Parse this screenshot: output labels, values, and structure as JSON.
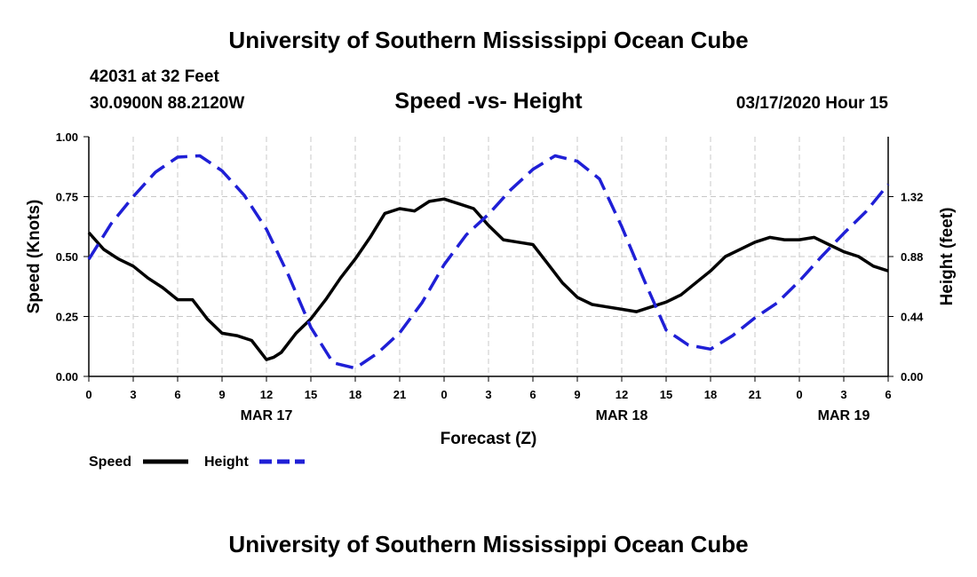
{
  "header": {
    "title": "University of Southern Mississippi Ocean Cube",
    "station": "42031 at 32 Feet",
    "coords": "30.0900N 88.2120W",
    "subtitle": "Speed -vs- Height",
    "datetime": "03/17/2020 Hour 15"
  },
  "footer": {
    "title": "University of Southern Mississippi Ocean Cube"
  },
  "chart_data": {
    "type": "line",
    "title": "Speed -vs- Height",
    "xlabel": "Forecast (Z)",
    "ylabel": "Speed (Knots)",
    "y2label": "Height (feet)",
    "xlim": [
      0,
      54
    ],
    "ylim": [
      0,
      1.0
    ],
    "y2lim": [
      0,
      1.76
    ],
    "grid": true,
    "x_ticks": [
      0,
      3,
      6,
      9,
      12,
      15,
      18,
      21,
      24,
      27,
      30,
      33,
      36,
      39,
      42,
      45,
      48,
      51,
      54
    ],
    "x_tick_labels": [
      "0",
      "3",
      "6",
      "9",
      "12",
      "15",
      "18",
      "21",
      "0",
      "3",
      "6",
      "9",
      "12",
      "15",
      "18",
      "21",
      "0",
      "3",
      "6"
    ],
    "date_labels": [
      {
        "x": 12,
        "label": "MAR 17"
      },
      {
        "x": 36,
        "label": "MAR 18"
      },
      {
        "x": 51,
        "label": "MAR 19"
      }
    ],
    "y_ticks": [
      0.0,
      0.25,
      0.5,
      0.75,
      1.0
    ],
    "y_tick_labels": [
      "0.00",
      "0.25",
      "0.50",
      "0.75",
      "1.00"
    ],
    "y2_ticks": [
      0.0,
      0.44,
      0.88,
      1.32
    ],
    "y2_tick_labels": [
      "0.00",
      "0.44",
      "0.88",
      "1.32"
    ],
    "series": [
      {
        "name": "Speed",
        "axis": "left",
        "color": "#000000",
        "dash": false,
        "x": [
          0,
          1,
          2,
          3,
          4,
          5,
          6,
          7,
          8,
          9,
          10,
          11,
          12,
          12.5,
          13,
          14,
          15,
          16,
          17,
          18,
          19,
          20,
          21,
          22,
          23,
          24,
          25,
          26,
          27,
          28,
          29,
          30,
          31,
          32,
          33,
          34,
          35,
          36,
          37,
          38,
          39,
          40,
          41,
          42,
          43,
          44,
          45,
          46,
          47,
          48,
          49,
          50,
          51,
          52,
          53,
          54
        ],
        "values": [
          0.6,
          0.53,
          0.49,
          0.46,
          0.41,
          0.37,
          0.32,
          0.32,
          0.24,
          0.18,
          0.17,
          0.15,
          0.07,
          0.08,
          0.1,
          0.18,
          0.24,
          0.32,
          0.41,
          0.49,
          0.58,
          0.68,
          0.7,
          0.69,
          0.73,
          0.74,
          0.72,
          0.7,
          0.63,
          0.57,
          0.56,
          0.55,
          0.47,
          0.39,
          0.33,
          0.3,
          0.29,
          0.28,
          0.27,
          0.29,
          0.31,
          0.34,
          0.39,
          0.44,
          0.5,
          0.53,
          0.56,
          0.58,
          0.57,
          0.57,
          0.58,
          0.55,
          0.52,
          0.5,
          0.46,
          0.44
        ]
      },
      {
        "name": "Height",
        "axis": "right",
        "color": "#1f1fd6",
        "dash": true,
        "x": [
          0,
          1.5,
          3,
          4.5,
          6,
          7.5,
          9,
          10.5,
          12,
          13.5,
          15,
          16.5,
          18,
          19.5,
          21,
          22.5,
          24,
          25.5,
          27,
          28.5,
          30,
          31.5,
          33,
          34.5,
          36,
          37.5,
          39,
          40.5,
          42,
          43.5,
          45,
          46.5,
          48,
          49.5,
          51,
          52.5,
          54
        ],
        "values": [
          0.86,
          1.12,
          1.32,
          1.5,
          1.61,
          1.62,
          1.51,
          1.33,
          1.08,
          0.74,
          0.36,
          0.1,
          0.06,
          0.17,
          0.32,
          0.54,
          0.82,
          1.04,
          1.19,
          1.37,
          1.52,
          1.62,
          1.58,
          1.45,
          1.1,
          0.71,
          0.34,
          0.23,
          0.2,
          0.3,
          0.43,
          0.54,
          0.7,
          0.88,
          1.05,
          1.21,
          1.41
        ]
      }
    ],
    "legend": [
      {
        "label": "Speed",
        "color": "#000000",
        "dash": false
      },
      {
        "label": "Height",
        "color": "#1f1fd6",
        "dash": true
      }
    ]
  }
}
